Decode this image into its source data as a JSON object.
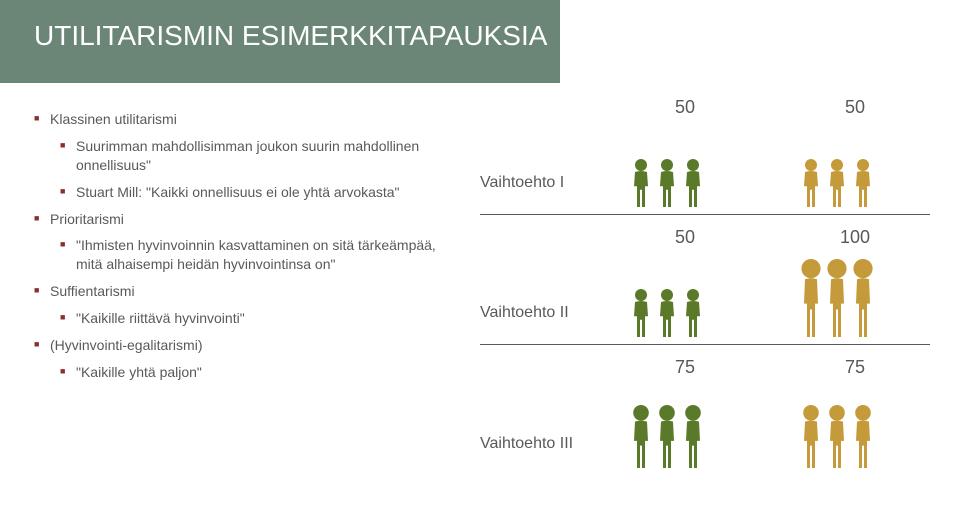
{
  "title": "UTILITARISMIN ESIMERKKITAPAUKSIA",
  "colors": {
    "band": "#6b8577",
    "text": "#595959",
    "bullet": "#8b2e2e",
    "green_person": "#5a7a2a",
    "ochre_person": "#c49a3a",
    "background": "#ffffff"
  },
  "bullets": {
    "l0a": "Klassinen utilitarismi",
    "l1a": "Suurimman mahdollisimman joukon suurin mahdollinen onnellisuus\"",
    "l1b": "Stuart Mill: \"Kaikki onnellisuus ei ole yhtä arvokasta\"",
    "l0b": "Prioritarismi",
    "l1c": "\"Ihmisten hyvinvoinnin kasvattaminen on sitä tärkeämpää, mitä alhaisempi heidän hyvinvointinsa on\"",
    "l0c": "Suffientarismi",
    "l1d": "\"Kaikille riittävä hyvinvointi\"",
    "l0d": "(Hyvinvointi-egalitarismi)",
    "l1e": "\"Kaikille yhtä paljon\""
  },
  "options": [
    {
      "label": "Vaihtoehto I",
      "a_value": "50",
      "b_value": "50",
      "a_count": 3,
      "a_height": 50,
      "a_color": "#5a7a2a",
      "b_count": 3,
      "b_height": 50,
      "b_color": "#c49a3a"
    },
    {
      "label": "Vaihtoehto II",
      "a_value": "50",
      "b_value": "100",
      "a_count": 3,
      "a_height": 50,
      "a_color": "#5a7a2a",
      "b_count": 3,
      "b_height": 80,
      "b_color": "#c49a3a"
    },
    {
      "label": "Vaihtoehto III",
      "a_value": "75",
      "b_value": "75",
      "a_count": 3,
      "a_height": 65,
      "a_color": "#5a7a2a",
      "b_count": 3,
      "b_height": 65,
      "b_color": "#c49a3a"
    }
  ]
}
